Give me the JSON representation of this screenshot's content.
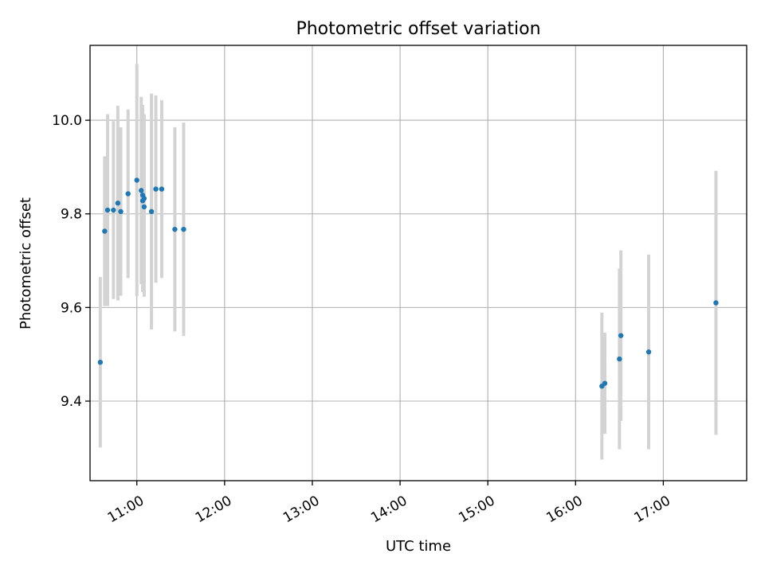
{
  "chart_data": {
    "type": "scatter",
    "title": "Photometric offset variation",
    "xlabel": "UTC time",
    "ylabel": "Photometric offset",
    "x_axis": {
      "kind": "time",
      "range": [
        "10:28",
        "17:57"
      ],
      "ticks": [
        "11:00",
        "12:00",
        "13:00",
        "14:00",
        "15:00",
        "16:00",
        "17:00"
      ]
    },
    "y_axis": {
      "range": [
        9.23,
        10.16
      ],
      "ticks": [
        9.4,
        9.6,
        9.8,
        10.0
      ],
      "tick_labels": [
        "9.4",
        "9.6",
        "9.8",
        "10.0"
      ]
    },
    "grid": true,
    "point_color": "#1f77b4",
    "errorbar_color": "#d3d3d3",
    "points": [
      {
        "time": "10:35",
        "y": 9.483,
        "err": 0.182
      },
      {
        "time": "10:38",
        "y": 9.763,
        "err": 0.16
      },
      {
        "time": "10:40",
        "y": 9.808,
        "err": 0.205
      },
      {
        "time": "10:44",
        "y": 9.808,
        "err": 0.19
      },
      {
        "time": "10:47",
        "y": 9.823,
        "err": 0.208
      },
      {
        "time": "10:49",
        "y": 9.805,
        "err": 0.18
      },
      {
        "time": "10:54",
        "y": 9.843,
        "err": 0.18
      },
      {
        "time": "11:00",
        "y": 9.872,
        "err": 0.248
      },
      {
        "time": "11:03",
        "y": 9.85,
        "err": 0.2
      },
      {
        "time": "11:04",
        "y": 9.84,
        "err": 0.193
      },
      {
        "time": "11:04",
        "y": 9.828,
        "err": 0.195
      },
      {
        "time": "11:05",
        "y": 9.833,
        "err": 0.18
      },
      {
        "time": "11:05",
        "y": 9.815,
        "err": 0.192
      },
      {
        "time": "11:10",
        "y": 9.805,
        "err": 0.252
      },
      {
        "time": "11:13",
        "y": 9.853,
        "err": 0.2
      },
      {
        "time": "11:17",
        "y": 9.853,
        "err": 0.19
      },
      {
        "time": "11:26",
        "y": 9.767,
        "err": 0.218
      },
      {
        "time": "11:32",
        "y": 9.767,
        "err": 0.228
      },
      {
        "time": "16:18",
        "y": 9.432,
        "err": 0.157
      },
      {
        "time": "16:20",
        "y": 9.438,
        "err": 0.108
      },
      {
        "time": "16:30",
        "y": 9.49,
        "err": 0.193
      },
      {
        "time": "16:31",
        "y": 9.54,
        "err": 0.182
      },
      {
        "time": "16:50",
        "y": 9.505,
        "err": 0.208
      },
      {
        "time": "17:36",
        "y": 9.61,
        "err": 0.282
      }
    ]
  }
}
